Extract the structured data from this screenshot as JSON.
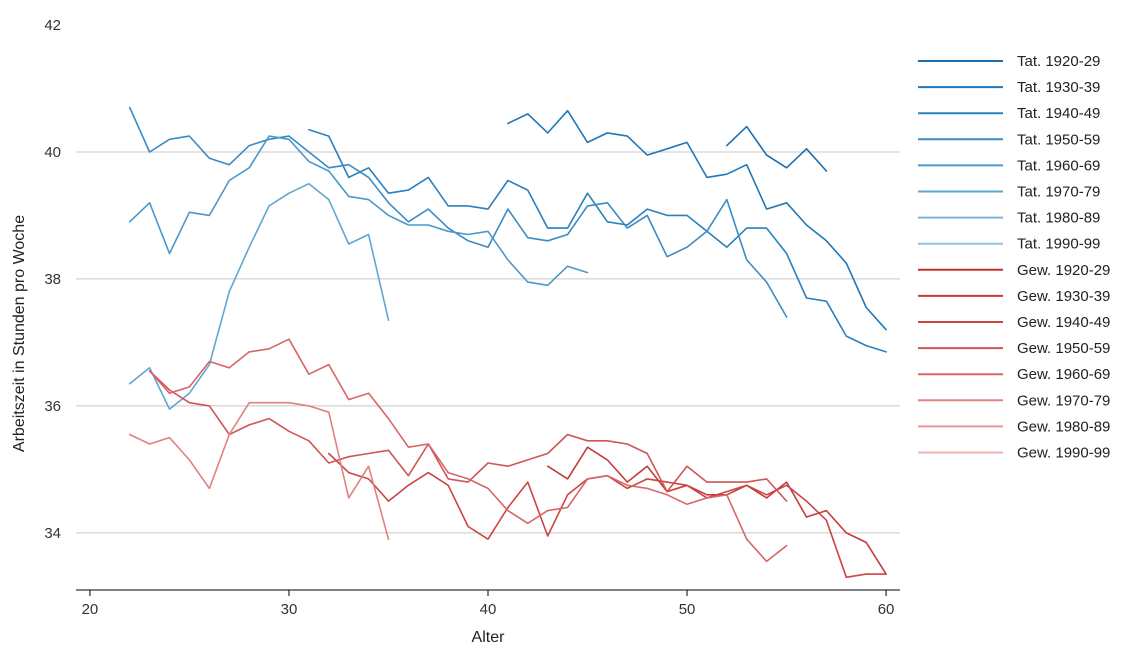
{
  "chart_data": {
    "type": "line",
    "xlabel": "Alter",
    "ylabel": "Arbeitszeit in Stunden pro Woche",
    "xlim": [
      19.3,
      60.7
    ],
    "ylim": [
      33.1,
      42
    ],
    "xticks": [
      20,
      30,
      40,
      50,
      60
    ],
    "yticks": [
      34,
      36,
      38,
      40,
      42
    ],
    "grid": "horizontal",
    "legend_position": "right",
    "series": [
      {
        "name": "Tat. 1920-29",
        "color": "#1a6fb3",
        "x": [
          52,
          53,
          54,
          55,
          56,
          57
        ],
        "y": [
          40.1,
          40.4,
          39.95,
          39.75,
          40.05,
          39.7
        ]
      },
      {
        "name": "Tat. 1930-39",
        "color": "#2177b8",
        "x": [
          41,
          42,
          43,
          44,
          45,
          46,
          47,
          48,
          49,
          50,
          51,
          52,
          53,
          54,
          55,
          56,
          57,
          58,
          59,
          60
        ],
        "y": [
          40.45,
          40.6,
          40.3,
          40.65,
          40.15,
          40.3,
          40.25,
          39.95,
          40.05,
          40.15,
          39.6,
          39.65,
          39.8,
          39.1,
          39.2,
          38.85,
          38.6,
          38.25,
          37.55,
          37.2
        ]
      },
      {
        "name": "Tat. 1940-49",
        "color": "#2b80bd",
        "x": [
          31,
          32,
          33,
          34,
          35,
          36,
          37,
          38,
          39,
          40,
          41,
          42,
          43,
          44,
          45,
          46,
          47,
          48,
          49,
          50,
          51,
          52,
          53,
          54,
          55,
          56,
          57,
          58,
          59,
          60
        ],
        "y": [
          40.35,
          40.25,
          39.6,
          39.75,
          39.35,
          39.4,
          39.6,
          39.15,
          39.15,
          39.1,
          39.55,
          39.4,
          38.8,
          38.8,
          39.35,
          38.9,
          38.85,
          39.1,
          39.0,
          39.0,
          38.75,
          38.5,
          38.8,
          38.8,
          38.4,
          37.7,
          37.65,
          37.1,
          36.95,
          36.85
        ]
      },
      {
        "name": "Tat. 1950-59",
        "color": "#3a8cc4",
        "x": [
          22,
          23,
          24,
          25,
          26,
          27,
          28,
          29,
          30,
          31,
          32,
          33,
          34,
          35,
          36,
          37,
          38,
          39,
          40,
          41,
          42,
          43,
          44,
          45,
          46,
          47,
          48,
          49,
          50,
          51,
          52,
          53,
          54,
          55
        ],
        "y": [
          40.7,
          40.0,
          40.2,
          40.25,
          39.9,
          39.8,
          40.1,
          40.2,
          40.25,
          40.0,
          39.75,
          39.8,
          39.6,
          39.2,
          38.9,
          39.1,
          38.8,
          38.6,
          38.5,
          39.1,
          38.65,
          38.6,
          38.7,
          39.15,
          39.2,
          38.8,
          39.0,
          38.35,
          38.5,
          38.75,
          39.25,
          38.3,
          37.95,
          37.4
        ]
      },
      {
        "name": "Tat. 1960-69",
        "color": "#4c98ca",
        "x": [
          22,
          23,
          24,
          25,
          26,
          27,
          28,
          29,
          30,
          31,
          32,
          33,
          34,
          35,
          36,
          37,
          38,
          39,
          40,
          41,
          42,
          43,
          44,
          45
        ],
        "y": [
          38.9,
          39.2,
          38.4,
          39.05,
          39.0,
          39.55,
          39.75,
          40.25,
          40.2,
          39.85,
          39.7,
          39.3,
          39.25,
          39.0,
          38.85,
          38.85,
          38.75,
          38.7,
          38.75,
          38.3,
          37.95,
          37.9,
          38.2,
          38.1
        ]
      },
      {
        "name": "Tat. 1970-79",
        "color": "#62a6d2",
        "x": [
          22,
          23,
          24,
          25,
          26,
          27,
          28,
          29,
          30,
          31,
          32,
          33,
          34,
          35
        ],
        "y": [
          36.35,
          36.6,
          35.95,
          36.2,
          36.65,
          37.8,
          38.5,
          39.15,
          39.35,
          39.5,
          39.25,
          38.55,
          38.7,
          37.35
        ]
      },
      {
        "name": "Tat. 1980-89",
        "color": "#7ab4da",
        "x": [],
        "y": []
      },
      {
        "name": "Tat. 1990-99",
        "color": "#94c4e3",
        "x": [],
        "y": []
      },
      {
        "name": "Gew. 1920-29",
        "color": "#c03030",
        "x": [],
        "y": []
      },
      {
        "name": "Gew. 1930-39",
        "color": "#c63a3a",
        "x": [
          43,
          44,
          45,
          46,
          47,
          48,
          49,
          50,
          51,
          52,
          53,
          54,
          55,
          56,
          57,
          58,
          59,
          60
        ],
        "y": [
          35.05,
          34.85,
          35.35,
          35.15,
          34.8,
          35.05,
          34.65,
          34.75,
          34.6,
          34.6,
          34.75,
          34.55,
          34.8,
          34.25,
          34.35,
          34.0,
          33.85,
          33.35
        ]
      },
      {
        "name": "Gew. 1940-49",
        "color": "#cb4545",
        "x": [
          32,
          33,
          34,
          35,
          36,
          37,
          38,
          39,
          40,
          41,
          42,
          43,
          44,
          45,
          46,
          47,
          48,
          49,
          50,
          51,
          52,
          53,
          54,
          55,
          56,
          57,
          58,
          59,
          60
        ],
        "y": [
          35.25,
          34.95,
          34.85,
          34.5,
          34.75,
          34.95,
          34.75,
          34.1,
          33.9,
          34.4,
          34.8,
          33.95,
          34.6,
          34.85,
          34.9,
          34.7,
          34.85,
          34.8,
          34.75,
          34.55,
          34.65,
          34.75,
          34.6,
          34.75,
          34.5,
          34.2,
          33.3,
          33.35,
          33.35
        ]
      },
      {
        "name": "Gew. 1950-59",
        "color": "#d05555",
        "x": [
          23,
          24,
          25,
          26,
          27,
          28,
          29,
          30,
          31,
          32,
          33,
          34,
          35,
          36,
          37,
          38,
          39,
          40,
          41,
          42,
          43,
          44,
          45,
          46,
          47,
          48,
          49,
          50,
          51,
          52,
          53,
          54,
          55
        ],
        "y": [
          36.55,
          36.25,
          36.05,
          36.0,
          35.55,
          35.7,
          35.8,
          35.6,
          35.45,
          35.1,
          35.2,
          35.25,
          35.3,
          34.9,
          35.4,
          34.85,
          34.8,
          35.1,
          35.05,
          35.15,
          35.25,
          35.55,
          35.45,
          35.45,
          35.4,
          35.25,
          34.65,
          35.05,
          34.8,
          34.8,
          34.8,
          34.85,
          34.5
        ]
      },
      {
        "name": "Gew. 1960-69",
        "color": "#d86666",
        "x": [
          23,
          24,
          25,
          26,
          27,
          28,
          29,
          30,
          31,
          32,
          33,
          34,
          35,
          36,
          37,
          38,
          39,
          40,
          41,
          42,
          43,
          44,
          45,
          46,
          47,
          48,
          49,
          50,
          51,
          52,
          53,
          54,
          55
        ],
        "y": [
          36.55,
          36.2,
          36.3,
          36.7,
          36.6,
          36.85,
          36.9,
          37.05,
          36.5,
          36.65,
          36.1,
          36.2,
          35.8,
          35.35,
          35.4,
          34.95,
          34.85,
          34.7,
          34.35,
          34.15,
          34.35,
          34.4,
          34.85,
          34.9,
          34.75,
          34.7,
          34.6,
          34.45,
          34.55,
          34.6,
          33.9,
          33.55,
          33.8
        ]
      },
      {
        "name": "Gew. 1970-79",
        "color": "#e08080",
        "x": [
          22,
          23,
          24,
          25,
          26,
          27,
          28,
          29,
          30,
          31,
          32,
          33,
          34,
          35
        ],
        "y": [
          35.55,
          35.4,
          35.5,
          35.15,
          34.7,
          35.55,
          36.05,
          36.05,
          36.05,
          36.0,
          35.9,
          34.55,
          35.05,
          33.9
        ]
      },
      {
        "name": "Gew. 1980-89",
        "color": "#e79999",
        "x": [],
        "y": []
      },
      {
        "name": "Gew. 1990-99",
        "color": "#efb3b3",
        "x": [],
        "y": []
      }
    ]
  }
}
